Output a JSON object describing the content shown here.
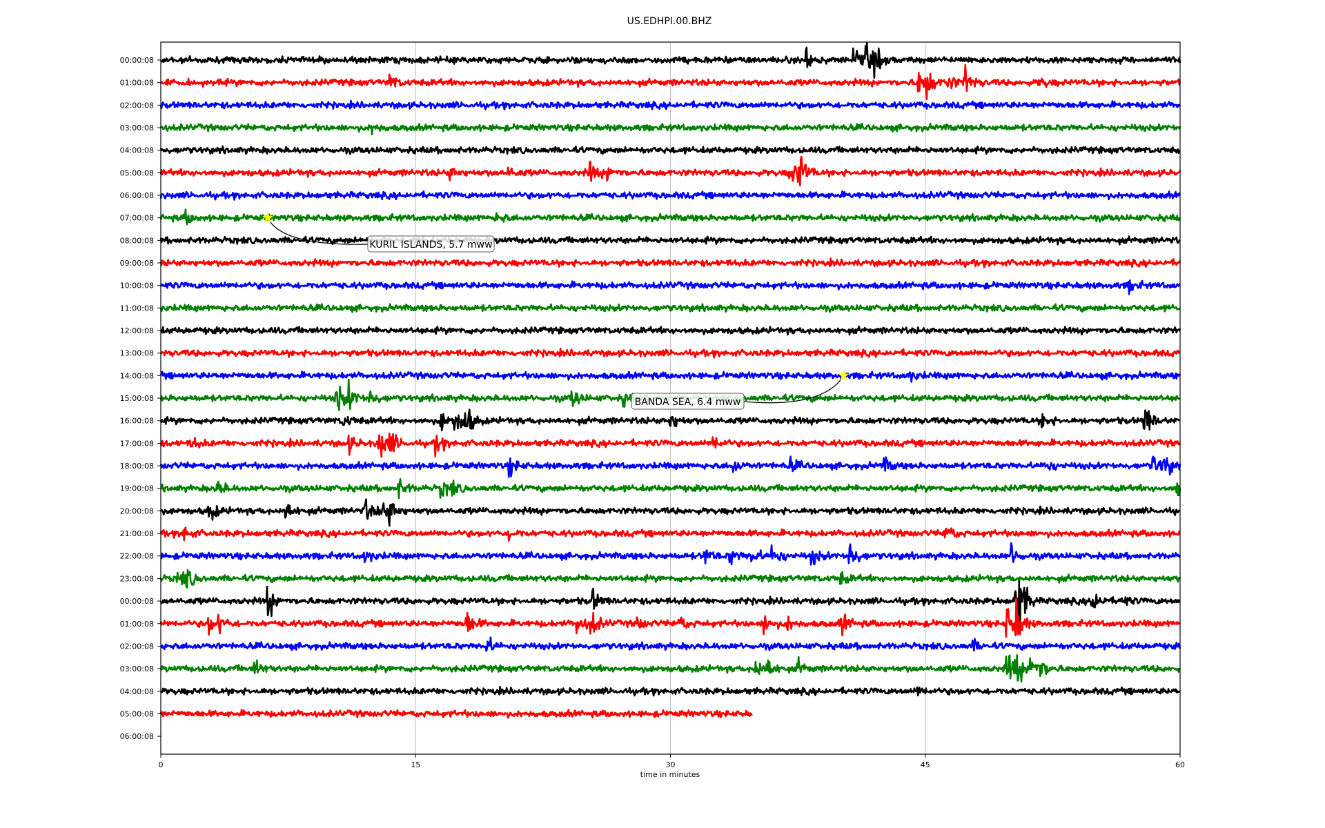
{
  "chart_data": {
    "type": "line",
    "title": "US.EDHPI.00.BHZ",
    "xlabel": "time in minutes",
    "ylabel": "",
    "xlim": [
      0,
      60
    ],
    "xticks": [
      "0",
      "15",
      "30",
      "45",
      "60"
    ],
    "xtick_values": [
      0,
      15,
      30,
      45,
      60
    ],
    "grid": "vertical",
    "colors": [
      "#000000",
      "#ff0000",
      "#0000ff",
      "#008000"
    ],
    "rows": [
      {
        "label": "00:00:08",
        "end": 60,
        "events": [
          [
            38,
            3
          ],
          [
            40.8,
            2.5
          ],
          [
            41.5,
            3
          ],
          [
            42,
            2.5
          ]
        ]
      },
      {
        "label": "01:00:08",
        "end": 60,
        "events": [
          [
            13.5,
            1.5
          ],
          [
            44.6,
            3.5
          ],
          [
            45,
            4
          ],
          [
            46.3,
            2
          ],
          [
            47.3,
            3.5
          ],
          [
            51.7,
            1.2
          ]
        ]
      },
      {
        "label": "02:00:08",
        "end": 60,
        "events": []
      },
      {
        "label": "03:00:08",
        "end": 60,
        "events": [
          [
            12.4,
            1.2
          ]
        ]
      },
      {
        "label": "04:00:08",
        "end": 60,
        "events": []
      },
      {
        "label": "05:00:08",
        "end": 60,
        "events": [
          [
            17,
            1.5
          ],
          [
            20.4,
            1.3
          ],
          [
            25.2,
            2.5
          ],
          [
            26.2,
            2
          ],
          [
            37,
            3
          ],
          [
            37.5,
            6
          ]
        ]
      },
      {
        "label": "06:00:08",
        "end": 60,
        "events": []
      },
      {
        "label": "07:00:08",
        "end": 60,
        "events": [
          [
            1.5,
            1.3
          ],
          [
            19.8,
            1.2
          ]
        ]
      },
      {
        "label": "08:00:08",
        "end": 60,
        "events": []
      },
      {
        "label": "09:00:08",
        "end": 60,
        "events": []
      },
      {
        "label": "10:00:08",
        "end": 60,
        "events": [
          [
            57,
            1.2
          ]
        ]
      },
      {
        "label": "11:00:08",
        "end": 60,
        "events": []
      },
      {
        "label": "12:00:08",
        "end": 60,
        "events": []
      },
      {
        "label": "13:00:08",
        "end": 60,
        "events": []
      },
      {
        "label": "14:00:08",
        "end": 60,
        "events": [
          [
            44,
            1.2
          ]
        ]
      },
      {
        "label": "15:00:08",
        "end": 60,
        "events": [
          [
            10.3,
            4.5
          ],
          [
            11,
            3
          ],
          [
            12.3,
            2
          ],
          [
            24.2,
            2.2
          ],
          [
            27.2,
            1.5
          ]
        ]
      },
      {
        "label": "16:00:08",
        "end": 60,
        "events": [
          [
            10.7,
            1.5
          ],
          [
            16.5,
            2
          ],
          [
            17.3,
            2.5
          ],
          [
            17.9,
            4.5
          ],
          [
            30,
            2
          ],
          [
            51.9,
            1.5
          ],
          [
            57.9,
            4
          ]
        ]
      },
      {
        "label": "17:00:08",
        "end": 60,
        "events": [
          [
            1.8,
            1.3
          ],
          [
            11,
            2
          ],
          [
            12.8,
            5
          ],
          [
            13.5,
            2.2
          ],
          [
            16.2,
            2
          ],
          [
            32.5,
            1.8
          ]
        ]
      },
      {
        "label": "18:00:08",
        "end": 60,
        "events": [
          [
            20.5,
            2
          ],
          [
            33.7,
            1.5
          ],
          [
            37,
            1.5
          ],
          [
            42.5,
            1.8
          ],
          [
            52,
            1.5
          ],
          [
            58.4,
            2.5
          ],
          [
            59,
            3
          ]
        ]
      },
      {
        "label": "19:00:08",
        "end": 60,
        "events": [
          [
            3.3,
            2
          ],
          [
            14,
            2
          ],
          [
            16.5,
            2
          ],
          [
            17,
            1.5
          ],
          [
            59.8,
            5
          ]
        ]
      },
      {
        "label": "20:00:08",
        "end": 60,
        "events": [
          [
            2.8,
            2.5
          ],
          [
            7.3,
            3
          ],
          [
            12,
            2.5
          ],
          [
            12.9,
            2.5
          ],
          [
            13.4,
            3.5
          ]
        ]
      },
      {
        "label": "21:00:08",
        "end": 60,
        "events": [
          [
            1.3,
            2
          ],
          [
            20.5,
            1.3
          ],
          [
            46.2,
            2.5
          ]
        ]
      },
      {
        "label": "22:00:08",
        "end": 60,
        "events": [
          [
            12,
            1.5
          ],
          [
            32,
            2
          ],
          [
            33.5,
            2
          ],
          [
            34.8,
            1.8
          ],
          [
            36,
            2.5
          ],
          [
            38.3,
            1.8
          ],
          [
            40.5,
            4.5
          ],
          [
            50,
            3
          ]
        ]
      },
      {
        "label": "23:00:08",
        "end": 60,
        "events": [
          [
            1,
            1.8
          ],
          [
            1.5,
            2
          ],
          [
            40,
            1.2
          ]
        ]
      },
      {
        "label": "00:00:08",
        "end": 60,
        "events": [
          [
            6.3,
            3.5
          ],
          [
            25.4,
            2.5
          ],
          [
            50.2,
            3
          ],
          [
            50.5,
            8
          ],
          [
            54.8,
            3.5
          ],
          [
            56.5,
            1.3
          ]
        ]
      },
      {
        "label": "01:00:08",
        "end": 60,
        "events": [
          [
            2.8,
            2.3
          ],
          [
            3.4,
            2
          ],
          [
            18,
            3
          ],
          [
            24.5,
            2.5
          ],
          [
            25.3,
            3
          ],
          [
            28,
            1.5
          ],
          [
            30.5,
            1.8
          ],
          [
            35.5,
            2.5
          ],
          [
            36.8,
            1.8
          ],
          [
            40,
            3
          ],
          [
            49.8,
            4
          ],
          [
            50.3,
            5
          ]
        ]
      },
      {
        "label": "02:00:08",
        "end": 60,
        "events": [
          [
            19.2,
            1.8
          ],
          [
            47.8,
            1.2
          ]
        ]
      },
      {
        "label": "03:00:08",
        "end": 60,
        "events": [
          [
            5.5,
            2
          ],
          [
            35,
            2.5
          ],
          [
            35.7,
            2.5
          ],
          [
            37.5,
            1.5
          ],
          [
            49.8,
            4
          ],
          [
            50.3,
            3.5
          ],
          [
            51.2,
            4
          ],
          [
            51.8,
            1.8
          ]
        ]
      },
      {
        "label": "04:00:08",
        "end": 60,
        "events": [
          [
            44.5,
            1.2
          ]
        ]
      },
      {
        "label": "05:00:08",
        "end": 34.8,
        "events": []
      },
      {
        "label": "06:00:08",
        "end": 0,
        "events": []
      }
    ],
    "annotations": [
      {
        "text": "KURIL ISLANDS, 5.7 mww",
        "row": 7,
        "minute": 6.3
      },
      {
        "text": "BANDA SEA, 6.4 mww",
        "row": 14,
        "minute": 40.2
      }
    ]
  }
}
